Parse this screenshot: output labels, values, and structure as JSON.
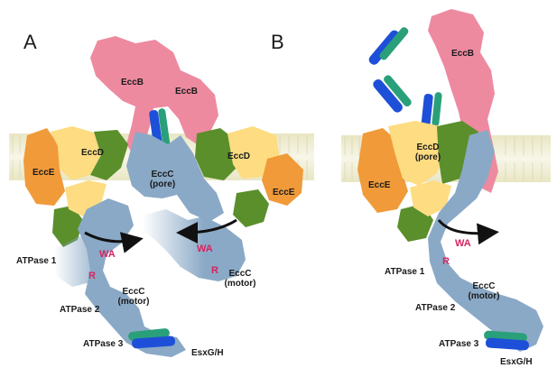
{
  "panels": {
    "A": {
      "letter": "A",
      "labels": {
        "eccb_1": "EccB",
        "eccb_2": "EccB",
        "eccd_left": "EccD",
        "eccd_right": "EccD",
        "ecce_left": "EccE",
        "ecce_right": "EccE",
        "eccc_pore": "EccC\n(pore)",
        "wa_left": "WA",
        "wa_right": "WA",
        "r_left": "R",
        "r_right": "R",
        "eccc_motor_left": "EccC\n(motor)",
        "eccc_motor_right": "EccC\n(motor)",
        "atpase1": "ATPase 1",
        "atpase2": "ATPase 2",
        "atpase3": "ATPase 3",
        "esxgh": "EsxG/H"
      }
    },
    "B": {
      "letter": "B",
      "labels": {
        "eccb": "EccB",
        "eccd": "EccD\n(pore)",
        "ecce": "EccE",
        "wa": "WA",
        "r": "R",
        "eccc_motor": "EccC\n(motor)",
        "atpase1": "ATPase 1",
        "atpase2": "ATPase 2",
        "atpase3": "ATPase 3",
        "esxgh": "EsxG/H"
      }
    }
  },
  "colors": {
    "eccb": "#ee8aa0",
    "eccd_green": "#5a8f2c",
    "eccd_yellow": "#fddc82",
    "ecce": "#f09a3a",
    "eccc": "#8aa9c6",
    "esx_blue": "#1e4fd8",
    "esx_green": "#2aa07a",
    "membrane": "#f2f0d6",
    "label_red": "#d6245f"
  }
}
